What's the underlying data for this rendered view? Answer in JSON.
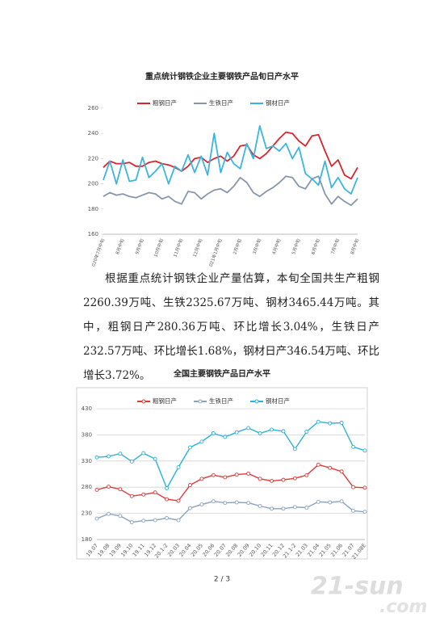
{
  "chart1": {
    "type": "line",
    "title": "重点统计钢铁企业主要钢铁产品旬日产水平",
    "categories": [
      "2020年7月中旬",
      null,
      null,
      "8月中旬",
      null,
      null,
      "9月中旬",
      null,
      null,
      "10月中旬",
      null,
      null,
      "11月中旬",
      null,
      null,
      "12月中旬",
      null,
      null,
      "2021年1月中旬",
      null,
      null,
      "2月中旬",
      null,
      null,
      "3月中旬",
      null,
      null,
      "4月中旬",
      null,
      null,
      "5月中旬",
      null,
      null,
      "6月中旬",
      null,
      null,
      "7月中旬",
      null,
      null,
      "8月中旬"
    ],
    "series": [
      {
        "name": "粗钢日产",
        "color": "#d9262e",
        "values": [
          213,
          218,
          216,
          216,
          217,
          214,
          214,
          217,
          218,
          216,
          215,
          213,
          210,
          214,
          220,
          221,
          217,
          220,
          222,
          218,
          222,
          230,
          231,
          223,
          220,
          224,
          230,
          236,
          241,
          240,
          234,
          230,
          238,
          239,
          226,
          214,
          219,
          207,
          204,
          213
        ]
      },
      {
        "name": "生铁日产",
        "color": "#8796ad",
        "values": [
          190,
          193,
          191,
          192,
          190,
          189,
          191,
          193,
          192,
          188,
          190,
          186,
          184,
          194,
          193,
          188,
          192,
          195,
          196,
          193,
          198,
          205,
          201,
          193,
          190,
          194,
          197,
          201,
          206,
          205,
          198,
          196,
          204,
          206,
          192,
          184,
          190,
          186,
          183,
          188
        ]
      },
      {
        "name": "钢材日产",
        "color": "#3bb5e0",
        "values": [
          203,
          218,
          200,
          219,
          202,
          203,
          221,
          205,
          210,
          216,
          200,
          214,
          210,
          223,
          209,
          222,
          207,
          240,
          209,
          225,
          216,
          212,
          232,
          220,
          246,
          228,
          230,
          226,
          232,
          220,
          229,
          208,
          204,
          199,
          218,
          197,
          205,
          196,
          192,
          205
        ]
      }
    ],
    "ylim": [
      160,
      260
    ],
    "yticks": [
      160,
      180,
      200,
      220,
      240,
      260
    ],
    "grid": false,
    "legend": "top",
    "markers": false
  },
  "paragraph": "根据重点统计钢铁企业产量估算，本旬全国共生产粗钢2260.39万吨、生铁2325.67万吨、钢材3465.44万吨。其中，粗钢日产280.36万吨、环比增长3.04%，生铁日产232.57万吨、环比增长1.68%，钢材日产346.54万吨、环比增长3.72%。",
  "chart2": {
    "type": "line",
    "title": "全国主要钢铁产品日产水平",
    "categories": [
      "19.07",
      "19.08",
      "19.09",
      "19.10",
      "19.11",
      "19.12",
      "20.1-2",
      "20.03",
      "20.04",
      "20.05",
      "20.06",
      "20.07",
      "20.08",
      "20.09",
      "20.10",
      "20.11",
      "20.12",
      "21.1-2",
      "21.03",
      "21.04",
      "21.05",
      "21.06",
      "21.07",
      "21.08E"
    ],
    "series": [
      {
        "name": "粗钢日产",
        "color": "#e03a3a",
        "values": [
          275,
          281,
          276,
          263,
          266,
          270,
          257,
          254,
          284,
          296,
          303,
          299,
          304,
          306,
          296,
          292,
          294,
          297,
          303,
          323,
          317,
          310,
          280,
          279
        ]
      },
      {
        "name": "生铁日产",
        "color": "#8aa2c0",
        "values": [
          220,
          229,
          225,
          213,
          216,
          217,
          221,
          217,
          240,
          247,
          253,
          250,
          251,
          250,
          244,
          239,
          239,
          242,
          241,
          252,
          251,
          253,
          235,
          233
        ]
      },
      {
        "name": "钢材日产",
        "color": "#29b3d6",
        "values": [
          337,
          339,
          344,
          329,
          345,
          334,
          278,
          318,
          356,
          367,
          383,
          376,
          385,
          393,
          383,
          390,
          387,
          353,
          386,
          405,
          402,
          403,
          357,
          350
        ]
      }
    ],
    "ylim": [
      180,
      430
    ],
    "yticks": [
      180,
      230,
      280,
      330,
      380,
      430
    ],
    "grid": true,
    "legend": "top",
    "markers": true
  },
  "page_number": "2 / 3",
  "watermark": {
    "brand": "21-sun",
    "domain": ".com"
  }
}
